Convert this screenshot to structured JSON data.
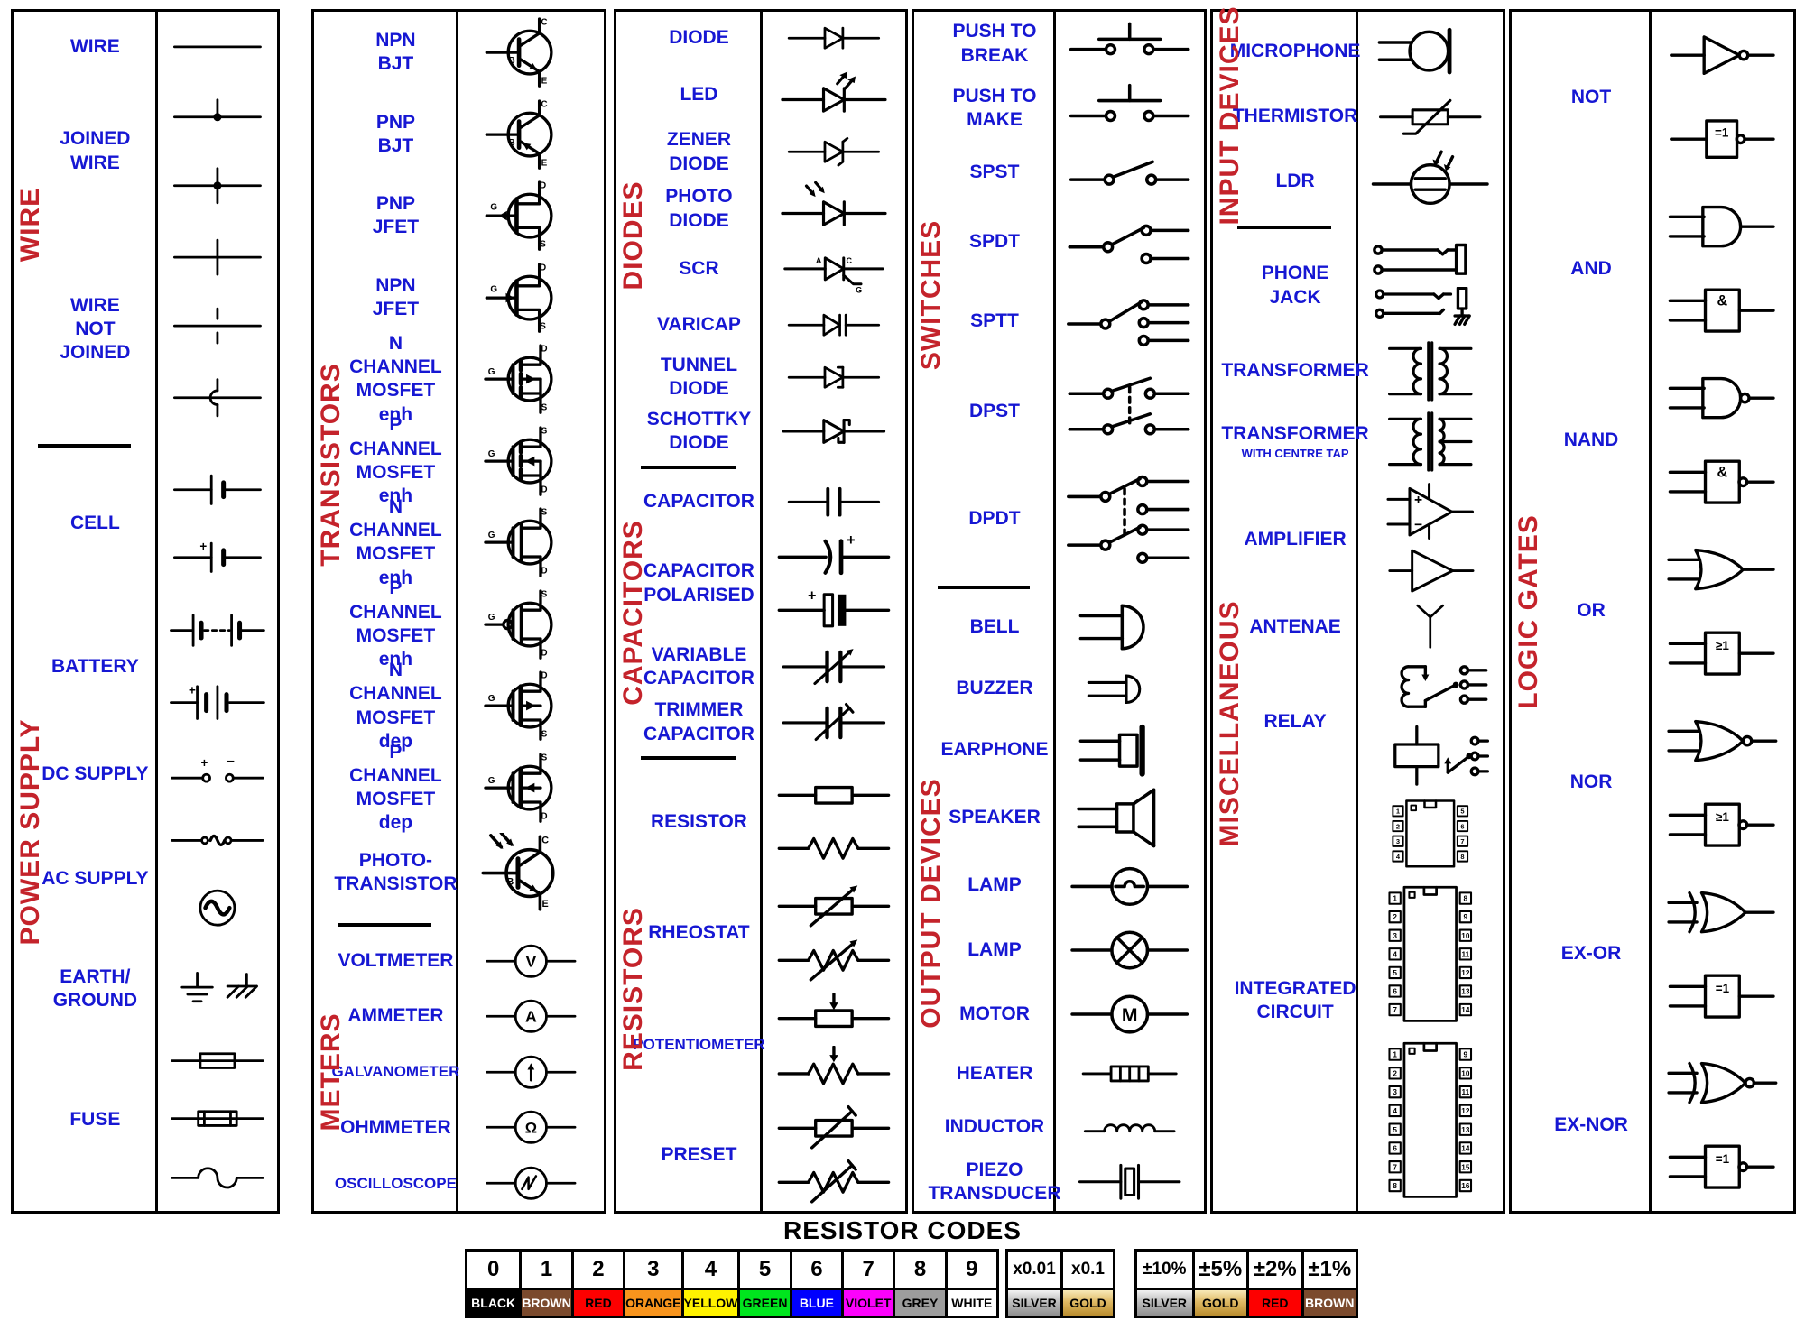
{
  "colors": {
    "label_blue": "#1617d3",
    "category_red": "#c4232b"
  },
  "panels": [
    {
      "name": "wire-power-supply",
      "sections": [
        {
          "category": "WIRE",
          "items": [
            {
              "label": "WIRE",
              "symbols": [
                "wire"
              ]
            },
            {
              "label": "JOINED\nWIRE",
              "symbols": [
                "joined-tee",
                "joined-cross"
              ]
            },
            {
              "label": "WIRE\nNOT JOINED",
              "symbols": [
                "wire-cross",
                "wire-gap",
                "wire-hop"
              ]
            }
          ]
        },
        {
          "category": "POWER SUPPLY",
          "items": [
            {
              "label": "CELL",
              "symbols": [
                "cell",
                "cell-plus"
              ]
            },
            {
              "label": "BATTERY",
              "symbols": [
                "battery-dashed",
                "battery-plus"
              ]
            },
            {
              "label": "DC SUPPLY",
              "symbols": [
                "dc-supply"
              ]
            },
            {
              "label": "AC SUPPLY",
              "symbols": [
                "ac-line",
                "ac-circle"
              ]
            },
            {
              "label": "EARTH/\nGROUND",
              "symbols": [
                "earth-ground"
              ]
            },
            {
              "label": "FUSE",
              "symbols": [
                "fuse-box",
                "fuse-caps",
                "fuse-wave"
              ]
            }
          ]
        }
      ]
    },
    {
      "name": "transistors-meters",
      "sections": [
        {
          "category": "TRANSISTORS",
          "items": [
            {
              "label": "NPN\nBJT",
              "symbols": [
                "npn-bjt"
              ]
            },
            {
              "label": "PNP\nBJT",
              "symbols": [
                "pnp-bjt"
              ]
            },
            {
              "label": "PNP\nJFET",
              "symbols": [
                "pnp-jfet"
              ]
            },
            {
              "label": "NPN\nJFET",
              "symbols": [
                "npn-jfet"
              ]
            },
            {
              "label": "N CHANNEL\nMOSFET enh",
              "symbols": [
                "nmos-enh"
              ]
            },
            {
              "label": "P CHANNEL\nMOSFET enh",
              "symbols": [
                "pmos-enh"
              ]
            },
            {
              "label": "N CHANNEL\nMOSFET enh",
              "symbols": [
                "nmos-enh-alt"
              ]
            },
            {
              "label": "P CHANNEL\nMOSFET enh",
              "symbols": [
                "pmos-enh-alt"
              ]
            },
            {
              "label": "N CHANNEL\nMOSFET dep",
              "symbols": [
                "nmos-dep"
              ]
            },
            {
              "label": "P CHANNEL\nMOSFET dep",
              "symbols": [
                "pmos-dep"
              ]
            },
            {
              "label": "PHOTO-\nTRANSISTOR",
              "symbols": [
                "photo-transistor"
              ]
            }
          ]
        },
        {
          "category": "METERS",
          "items": [
            {
              "label": "VOLTMETER",
              "symbols": [
                "voltmeter"
              ]
            },
            {
              "label": "AMMETER",
              "symbols": [
                "ammeter"
              ]
            },
            {
              "label": "GALVANOMETER",
              "symbols": [
                "galvanometer"
              ]
            },
            {
              "label": "OHMMETER",
              "symbols": [
                "ohmmeter"
              ]
            },
            {
              "label": "OSCILLOSCOPE",
              "symbols": [
                "oscilloscope"
              ]
            }
          ]
        }
      ]
    },
    {
      "name": "diodes-capacitors-resistors",
      "sections": [
        {
          "category": "DIODES",
          "items": [
            {
              "label": "DIODE",
              "symbols": [
                "diode"
              ]
            },
            {
              "label": "LED",
              "symbols": [
                "led"
              ]
            },
            {
              "label": "ZENER\nDIODE",
              "symbols": [
                "zener"
              ]
            },
            {
              "label": "PHOTO\nDIODE",
              "symbols": [
                "photo-diode"
              ]
            },
            {
              "label": "SCR",
              "symbols": [
                "scr"
              ]
            },
            {
              "label": "VARICAP",
              "symbols": [
                "varicap"
              ]
            },
            {
              "label": "TUNNEL\nDIODE",
              "symbols": [
                "tunnel-diode"
              ]
            },
            {
              "label": "SCHOTTKY\nDIODE",
              "symbols": [
                "schottky-diode"
              ]
            }
          ]
        },
        {
          "category": "CAPACITORS",
          "items": [
            {
              "label": "CAPACITOR",
              "symbols": [
                "capacitor"
              ]
            },
            {
              "label": "CAPACITOR\nPOLARISED",
              "symbols": [
                "capacitor-polarised-curved",
                "capacitor-polarised-block"
              ]
            },
            {
              "label": "VARIABLE\nCAPACITOR",
              "symbols": [
                "variable-capacitor"
              ]
            },
            {
              "label": "TRIMMER\nCAPACITOR",
              "symbols": [
                "trimmer-capacitor"
              ]
            }
          ]
        },
        {
          "category": "RESISTORS",
          "items": [
            {
              "label": "RESISTOR",
              "symbols": [
                "resistor-box",
                "resistor-zigzag"
              ]
            },
            {
              "label": "RHEOSTAT",
              "symbols": [
                "rheostat-box",
                "rheostat-zigzag"
              ]
            },
            {
              "label": "POTENTIOMETER",
              "symbols": [
                "potentiometer-box",
                "potentiometer-zigzag"
              ]
            },
            {
              "label": "PRESET",
              "symbols": [
                "preset-box",
                "preset-zigzag"
              ]
            }
          ]
        }
      ]
    },
    {
      "name": "switches-output-devices",
      "sections": [
        {
          "category": "SWITCHES",
          "items": [
            {
              "label": "PUSH TO\nBREAK",
              "symbols": [
                "push-to-break"
              ]
            },
            {
              "label": "PUSH TO\nMAKE",
              "symbols": [
                "push-to-make"
              ]
            },
            {
              "label": "SPST",
              "symbols": [
                "spst"
              ]
            },
            {
              "label": "SPDT",
              "symbols": [
                "spdt"
              ]
            },
            {
              "label": "SPTT",
              "symbols": [
                "sptt"
              ]
            },
            {
              "label": "DPST",
              "symbols": [
                "dpst"
              ]
            },
            {
              "label": "DPDT",
              "symbols": [
                "dpdt"
              ]
            }
          ]
        },
        {
          "category": "OUTPUT DEVICES",
          "items": [
            {
              "label": "BELL",
              "symbols": [
                "bell"
              ]
            },
            {
              "label": "BUZZER",
              "symbols": [
                "buzzer"
              ]
            },
            {
              "label": "EARPHONE",
              "symbols": [
                "earphone"
              ]
            },
            {
              "label": "SPEAKER",
              "symbols": [
                "speaker"
              ]
            },
            {
              "label": "LAMP",
              "symbols": [
                "lamp-bump"
              ]
            },
            {
              "label": "LAMP",
              "symbols": [
                "lamp-cross"
              ]
            },
            {
              "label": "MOTOR",
              "symbols": [
                "motor"
              ]
            },
            {
              "label": "HEATER",
              "symbols": [
                "heater"
              ]
            },
            {
              "label": "INDUCTOR",
              "symbols": [
                "inductor"
              ]
            },
            {
              "label": "PIEZO\nTRANSDUCER",
              "symbols": [
                "piezo-transducer"
              ]
            }
          ]
        }
      ]
    },
    {
      "name": "input-devices-miscellaneous",
      "sections": [
        {
          "category": "INPUT DEVICES",
          "items": [
            {
              "label": "MICROPHONE",
              "symbols": [
                "microphone"
              ]
            },
            {
              "label": "THERMISTOR",
              "symbols": [
                "thermistor"
              ]
            },
            {
              "label": "LDR",
              "symbols": [
                "ldr"
              ]
            }
          ]
        },
        {
          "category": "MISCELLANEOUS",
          "items": [
            {
              "label": "PHONE JACK",
              "symbols": [
                "phone-jack-stereo",
                "phone-jack-mono"
              ]
            },
            {
              "label": "TRANSFORMER",
              "symbols": [
                "transformer"
              ]
            },
            {
              "label": "TRANSFORMER",
              "sublabel": "WITH CENTRE TAP",
              "symbols": [
                "transformer-centre-tap"
              ]
            },
            {
              "label": "AMPLIFIER",
              "symbols": [
                "op-amp",
                "amplifier-triangle"
              ]
            },
            {
              "label": "ANTENAE",
              "symbols": [
                "antenna"
              ]
            },
            {
              "label": "RELAY",
              "symbols": [
                "relay-coil",
                "relay-box"
              ]
            },
            {
              "label": "INTEGRATED\nCIRCUIT",
              "symbols": [
                "ic-8pin",
                "ic-14pin",
                "ic-16pin"
              ]
            }
          ]
        }
      ]
    },
    {
      "name": "logic-gates",
      "sections": [
        {
          "category": "LOGIC GATES",
          "items": [
            {
              "label": "NOT",
              "symbols": [
                "not-gate",
                "not-gate-iec"
              ]
            },
            {
              "label": "AND",
              "symbols": [
                "and-gate",
                "and-gate-iec"
              ]
            },
            {
              "label": "NAND",
              "symbols": [
                "nand-gate",
                "nand-gate-iec"
              ]
            },
            {
              "label": "OR",
              "symbols": [
                "or-gate",
                "or-gate-iec"
              ]
            },
            {
              "label": "NOR",
              "symbols": [
                "nor-gate",
                "nor-gate-iec"
              ]
            },
            {
              "label": "EX-OR",
              "symbols": [
                "xor-gate",
                "xor-gate-iec"
              ]
            },
            {
              "label": "EX-NOR",
              "symbols": [
                "xnor-gate",
                "xnor-gate-iec"
              ]
            }
          ]
        }
      ]
    }
  ],
  "resistor_codes": {
    "title": "RESISTOR CODES",
    "digits": [
      {
        "value": "0",
        "name": "BLACK",
        "bg": "#000000",
        "fg": "#ffffff"
      },
      {
        "value": "1",
        "name": "BROWN",
        "bg": "#7b4a2d",
        "fg": "#ffffff"
      },
      {
        "value": "2",
        "name": "RED",
        "bg": "#fd0000",
        "fg": "#000000"
      },
      {
        "value": "3",
        "name": "ORANGE",
        "bg": "#f7941d",
        "fg": "#000000"
      },
      {
        "value": "4",
        "name": "YELLOW",
        "bg": "#fff200",
        "fg": "#000000"
      },
      {
        "value": "5",
        "name": "GREEN",
        "bg": "#00e51e",
        "fg": "#000000"
      },
      {
        "value": "6",
        "name": "BLUE",
        "bg": "#0000fe",
        "fg": "#ffffff"
      },
      {
        "value": "7",
        "name": "VIOLET",
        "bg": "#fb02fb",
        "fg": "#000000"
      },
      {
        "value": "8",
        "name": "GREY",
        "bg": "#9d9d9d",
        "fg": "#000000"
      },
      {
        "value": "9",
        "name": "WHITE",
        "bg": "#ffffff",
        "fg": "#000000"
      }
    ],
    "multipliers": [
      {
        "value": "x0.01",
        "name": "SILVER",
        "bg": "silver",
        "fg": "#000000"
      },
      {
        "value": "x0.1",
        "name": "GOLD",
        "bg": "gold",
        "fg": "#000000"
      }
    ],
    "tolerances": [
      {
        "value": "±10%",
        "name": "SILVER",
        "bg": "silver",
        "fg": "#000000"
      },
      {
        "value": "±5%",
        "name": "GOLD",
        "bg": "gold",
        "fg": "#000000"
      },
      {
        "value": "±2%",
        "name": "RED",
        "bg": "#fd0000",
        "fg": "#000000"
      },
      {
        "value": "±1%",
        "name": "BROWN",
        "bg": "#7b4a2d",
        "fg": "#ffffff"
      }
    ]
  }
}
